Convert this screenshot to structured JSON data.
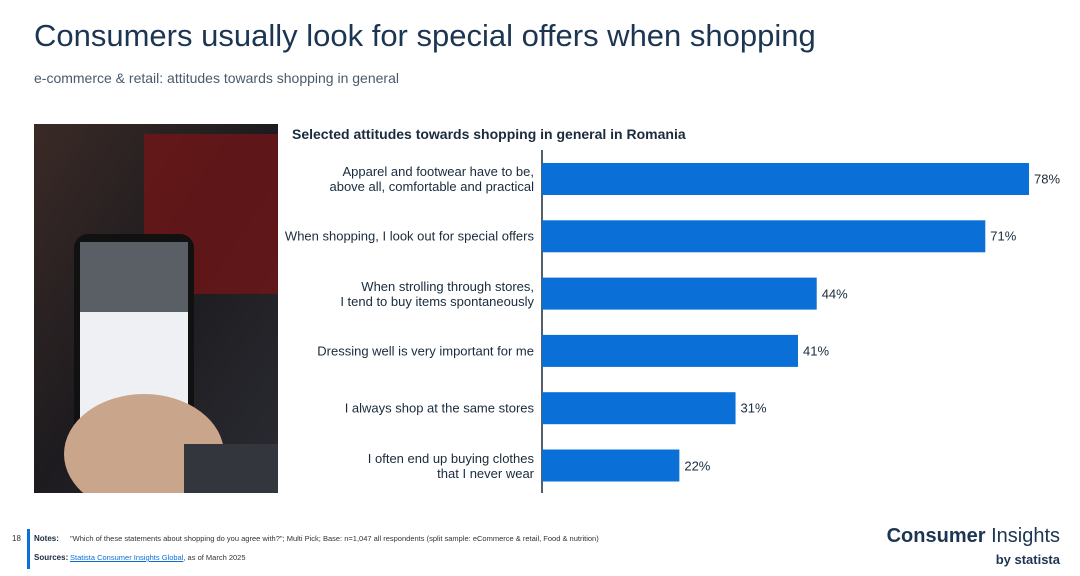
{
  "header": {
    "title": "Consumers usually look for special offers when shopping",
    "subtitle": "e-commerce & retail: attitudes towards shopping in general"
  },
  "chart_data": {
    "type": "bar",
    "orientation": "horizontal",
    "title": "Selected attitudes towards shopping in general in Romania",
    "categories": [
      "Apparel and footwear have to be,\nabove all, comfortable and practical",
      "When shopping, I look out for special offers",
      "When strolling through stores,\nI tend to buy items spontaneously",
      "Dressing well is very important for me",
      "I always shop at the same stores",
      "I often end up buying clothes\nthat I never wear"
    ],
    "values": [
      78,
      71,
      44,
      41,
      31,
      22
    ],
    "value_labels": [
      "78%",
      "71%",
      "44%",
      "41%",
      "31%",
      "22%"
    ],
    "color": "#0a6fd6"
  },
  "footer": {
    "page": "18",
    "notes_label": "Notes:",
    "notes": "\"Which of these statements about shopping do you agree with?\"; Multi Pick; Base: n=1,047 all respondents (split sample: eCommerce & retail, Food & nutrition)",
    "sources_label": "Sources:",
    "source_link": "Statista Consumer Insights Global",
    "source_rest": ", as of March 2025"
  },
  "brand": {
    "name_bold": "Consumer",
    "name_regular": " Insights",
    "by": "by statista"
  }
}
